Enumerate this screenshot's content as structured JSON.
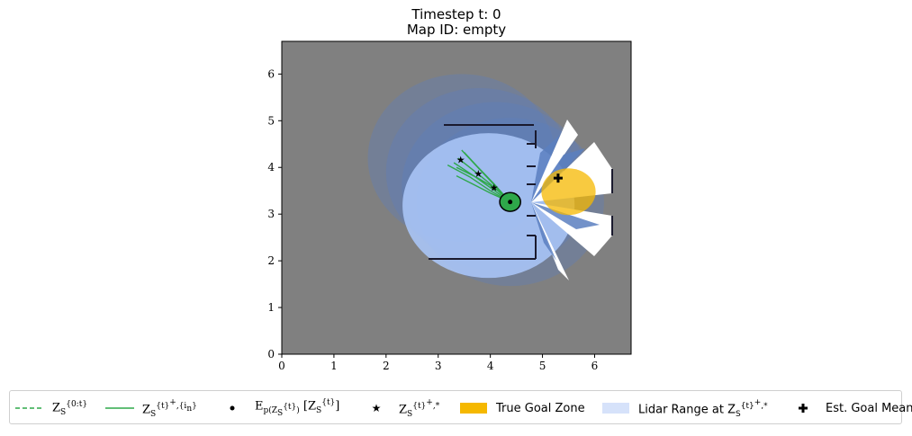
{
  "chart_data": {
    "type": "scatter",
    "title": "Timestep t: 0",
    "subtitle": "Map ID: empty",
    "xlabel": "",
    "ylabel": "",
    "xlim": [
      0,
      6.7
    ],
    "ylim": [
      0,
      6.7
    ],
    "xticks": [
      "0",
      "1",
      "2",
      "3",
      "4",
      "5",
      "6"
    ],
    "yticks": [
      "0",
      "1",
      "2",
      "3",
      "4",
      "5",
      "6"
    ],
    "grid": false,
    "legend_position": "bottom",
    "robot": {
      "x": 4.38,
      "y": 3.26,
      "radius": 0.2
    },
    "best_trajectory_points": [
      {
        "x": 3.43,
        "y": 4.17
      },
      {
        "x": 3.77,
        "y": 3.87
      },
      {
        "x": 4.07,
        "y": 3.57
      }
    ],
    "sampled_trajectories": [
      [
        [
          4.38,
          3.26
        ],
        [
          4.05,
          3.6
        ],
        [
          3.72,
          3.9
        ],
        [
          3.38,
          4.2
        ]
      ],
      [
        [
          4.38,
          3.26
        ],
        [
          4.02,
          3.55
        ],
        [
          3.68,
          3.82
        ],
        [
          3.3,
          4.1
        ]
      ],
      [
        [
          4.38,
          3.26
        ],
        [
          4.08,
          3.62
        ],
        [
          3.8,
          3.95
        ],
        [
          3.45,
          4.37
        ]
      ],
      [
        [
          4.38,
          3.26
        ],
        [
          4.0,
          3.5
        ],
        [
          3.6,
          3.8
        ],
        [
          3.18,
          4.05
        ]
      ],
      [
        [
          4.38,
          3.26
        ],
        [
          4.1,
          3.55
        ],
        [
          3.75,
          3.78
        ],
        [
          3.35,
          4.0
        ]
      ],
      [
        [
          4.38,
          3.26
        ],
        [
          4.0,
          3.45
        ],
        [
          3.65,
          3.65
        ],
        [
          3.35,
          3.82
        ]
      ],
      [
        [
          4.38,
          3.26
        ],
        [
          4.06,
          3.66
        ],
        [
          3.75,
          4.02
        ],
        [
          3.5,
          4.32
        ]
      ]
    ],
    "estimated_goal_mean": {
      "x": 5.3,
      "y": 3.77
    },
    "true_goal_zone": {
      "x": 5.5,
      "y": 3.48,
      "rx": 0.52,
      "ry": 0.5
    },
    "lidar_range_circles": [
      {
        "x": 3.45,
        "y": 4.2,
        "r": 1.8
      },
      {
        "x": 3.8,
        "y": 3.9,
        "r": 1.8
      },
      {
        "x": 4.1,
        "y": 3.6,
        "r": 1.8
      },
      {
        "x": 4.38,
        "y": 3.26,
        "r": 1.8
      }
    ],
    "legend_entries": [
      {
        "label": "Z_S^{0:t}"
      },
      {
        "label": "Z_S^{t+,i_n}"
      },
      {
        "label": "E_p(Z_S^t)[Z_S^t]"
      },
      {
        "label": "Z_S^{t+,*}"
      },
      {
        "label": "True Goal Zone"
      },
      {
        "label": "Lidar Range at Z_S^{t+,*}"
      },
      {
        "label": "Est. Goal Mean"
      }
    ],
    "colors": {
      "background": "#808080",
      "lidar": "#a8c4f5",
      "lidar_overlap": "#5b7fc0",
      "trajectory": "#2ea84a",
      "goal_zone": "#f5b800",
      "wall": "#1a1a2e",
      "free_space": "#ffffff"
    }
  }
}
